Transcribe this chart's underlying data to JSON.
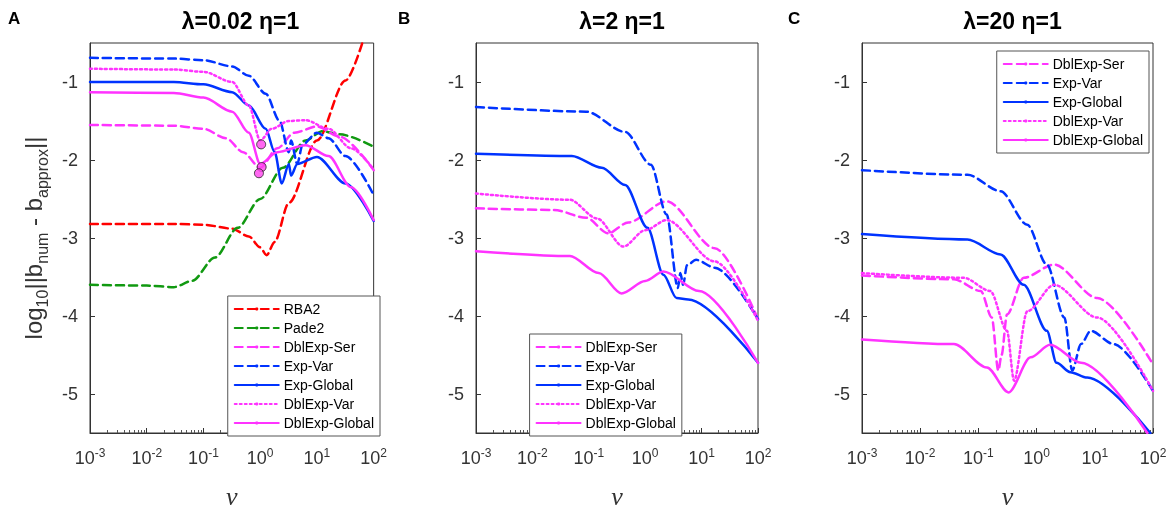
{
  "chart_data": [
    {
      "type": "line",
      "title": "λ=0.02 η=1",
      "annotations": [
        "A"
      ],
      "xlabel": "ν",
      "ylabel": "log$_{10}$||b$_{num}$ - b$_{approx}$||",
      "log": "x",
      "xlim": [
        0.001,
        100
      ],
      "ylim": [
        -5.5,
        -0.5
      ],
      "xticks": [
        {
          "value": 0.001,
          "label": "10$^{-3}$"
        },
        {
          "value": 0.01,
          "label": "10$^{-2}$"
        },
        {
          "value": 0.1,
          "label": "10$^{-1}$"
        },
        {
          "value": 1,
          "label": "10$^{0}$"
        },
        {
          "value": 10,
          "label": "10$^{1}$"
        },
        {
          "value": 100,
          "label": "10$^{2}$"
        }
      ],
      "yticks": [
        -5,
        -4,
        -3,
        -2,
        -1
      ],
      "grid": false,
      "legend": "bottom right",
      "marker": "none",
      "series": [
        {
          "name": "RBA2",
          "color": "#ff0000",
          "line_style": "dashed",
          "x": [
            0.001,
            0.03,
            0.1,
            0.32,
            0.63,
            1,
            1.3,
            1.8,
            3.2,
            10,
            32,
            63
          ],
          "values": [
            -2.82,
            -2.82,
            -2.83,
            -2.88,
            -2.98,
            -3.12,
            -3.22,
            -3.05,
            -2.55,
            -1.75,
            -0.98,
            -0.5
          ]
        },
        {
          "name": "Pade2",
          "color": "#119911",
          "line_style": "dashed",
          "x": [
            0.001,
            0.01,
            0.03,
            0.063,
            0.16,
            0.4,
            1,
            2.5,
            6.3,
            12.5,
            25,
            100
          ],
          "values": [
            -3.6,
            -3.61,
            -3.63,
            -3.55,
            -3.25,
            -2.87,
            -2.5,
            -2.1,
            -1.75,
            -1.63,
            -1.67,
            -1.83
          ]
        },
        {
          "name": "DblExp-Ser",
          "color": "#ff33ff",
          "line_style": "dashed",
          "x": [
            0.001,
            0.03,
            0.1,
            0.25,
            0.5,
            1,
            2,
            4,
            10,
            25,
            100
          ],
          "values": [
            -1.55,
            -1.56,
            -1.6,
            -1.72,
            -1.9,
            -2.1,
            -1.85,
            -1.65,
            -1.57,
            -1.7,
            -2.13
          ]
        },
        {
          "name": "Exp-Var",
          "color": "#0033ff",
          "line_style": "dashed",
          "x": [
            0.001,
            0.03,
            0.1,
            0.32,
            0.63,
            1.25,
            2.2,
            3.2,
            3.5,
            4.5,
            5.6,
            10,
            16,
            32,
            100
          ],
          "values": [
            -0.69,
            -0.7,
            -0.72,
            -0.8,
            -0.92,
            -1.15,
            -1.5,
            -1.9,
            -1.75,
            -2.05,
            -1.8,
            -1.65,
            -1.72,
            -1.95,
            -2.45
          ]
        },
        {
          "name": "Exp-Global",
          "color": "#0033ff",
          "line_style": "solid",
          "x": [
            0.001,
            0.03,
            0.1,
            0.32,
            0.63,
            1.25,
            1.8,
            2.4,
            3.2,
            3.5,
            4.5,
            10,
            32,
            100
          ],
          "values": [
            -1.0,
            -1.0,
            -1.03,
            -1.13,
            -1.3,
            -1.6,
            -1.9,
            -2.3,
            -2.05,
            -2.2,
            -2.05,
            -1.96,
            -2.3,
            -2.78
          ]
        },
        {
          "name": "DblExp-Var",
          "color": "#ff33ff",
          "line_style": "dotted",
          "x": [
            0.001,
            0.03,
            0.1,
            0.32,
            0.63,
            1,
            1.6,
            3.2,
            6.3,
            16,
            40,
            100
          ],
          "values": [
            -0.83,
            -0.84,
            -0.87,
            -1.0,
            -1.3,
            -1.75,
            -1.6,
            -1.5,
            -1.49,
            -1.6,
            -1.85,
            -2.12
          ]
        },
        {
          "name": "DblExp-Global",
          "color": "#ff33ff",
          "line_style": "solid",
          "x": [
            0.001,
            0.03,
            0.1,
            0.32,
            0.63,
            1,
            2,
            6.3,
            16,
            40,
            100
          ],
          "values": [
            -1.13,
            -1.14,
            -1.2,
            -1.38,
            -1.65,
            -2.05,
            -1.9,
            -1.81,
            -1.95,
            -2.35,
            -2.77
          ]
        },
        {
          "type": "scatter",
          "marker": "circle",
          "color": "#ff44ee",
          "x": [
            1.04,
            1.06,
            0.95
          ],
          "values": [
            -1.8,
            -2.09,
            -2.17
          ]
        }
      ]
    },
    {
      "type": "line",
      "title": "λ=2 η=1",
      "annotations": [
        "B"
      ],
      "xlabel": "ν",
      "log": "x",
      "xlim": [
        0.001,
        100
      ],
      "ylim": [
        -5.5,
        -0.5
      ],
      "xticks": [
        {
          "value": 0.001,
          "label": "10$^{-3}$"
        },
        {
          "value": 0.01,
          "label": "10$^{-2}$"
        },
        {
          "value": 0.1,
          "label": "10$^{-1}$"
        },
        {
          "value": 1,
          "label": "10$^{0}$"
        },
        {
          "value": 10,
          "label": "10$^{1}$"
        },
        {
          "value": 100,
          "label": "10$^{2}$"
        }
      ],
      "yticks": [
        -5,
        -4,
        -3,
        -2,
        -1
      ],
      "grid": false,
      "legend": "bottom",
      "marker": "none",
      "series": [
        {
          "name": "DblExp-Ser",
          "color": "#ff33ff",
          "line_style": "dashed",
          "x": [
            0.001,
            0.024,
            0.09,
            0.22,
            0.5,
            2.4,
            17,
            100
          ],
          "values": [
            -2.62,
            -2.64,
            -2.74,
            -2.94,
            -2.8,
            -2.53,
            -3.13,
            -4.04
          ]
        },
        {
          "name": "Exp-Var",
          "color": "#0033ff",
          "line_style": "dashed",
          "x": [
            0.001,
            0.09,
            0.44,
            1.26,
            2.4,
            3.8,
            4.2,
            4.7,
            5.5,
            8,
            17,
            100
          ],
          "values": [
            -1.32,
            -1.38,
            -1.64,
            -2.06,
            -2.7,
            -3.64,
            -3.45,
            -3.6,
            -3.35,
            -3.28,
            -3.38,
            -4.04
          ]
        },
        {
          "name": "Exp-Global",
          "color": "#0033ff",
          "line_style": "solid",
          "x": [
            0.001,
            0.05,
            0.17,
            0.44,
            1.1,
            2.1,
            3.6,
            5.8,
            100
          ],
          "values": [
            -1.92,
            -1.95,
            -2.1,
            -2.32,
            -2.87,
            -3.47,
            -3.77,
            -3.79,
            -4.6
          ]
        },
        {
          "name": "DblExp-Var",
          "color": "#ff33ff",
          "line_style": "dotted",
          "x": [
            0.001,
            0.046,
            0.14,
            0.41,
            1,
            2.4,
            17,
            100
          ],
          "values": [
            -2.43,
            -2.51,
            -2.75,
            -3.11,
            -2.9,
            -2.77,
            -3.3,
            -4.06
          ]
        },
        {
          "name": "DblExp-Global",
          "color": "#ff33ff",
          "line_style": "solid",
          "x": [
            0.001,
            0.046,
            0.15,
            0.38,
            1,
            2.1,
            9,
            100
          ],
          "values": [
            -3.17,
            -3.23,
            -3.45,
            -3.71,
            -3.55,
            -3.43,
            -3.68,
            -4.6
          ]
        }
      ]
    },
    {
      "type": "line",
      "title": "λ=20 η=1",
      "annotations": [
        "C"
      ],
      "xlabel": "ν",
      "log": "x",
      "xlim": [
        0.001,
        100
      ],
      "ylim": [
        -5.5,
        -0.5
      ],
      "xticks": [
        {
          "value": 0.001,
          "label": "10$^{-3}$"
        },
        {
          "value": 0.01,
          "label": "10$^{-2}$"
        },
        {
          "value": 0.1,
          "label": "10$^{-1}$"
        },
        {
          "value": 1,
          "label": "10$^{0}$"
        },
        {
          "value": 10,
          "label": "10$^{1}$"
        },
        {
          "value": 100,
          "label": "10$^{2}$"
        }
      ],
      "yticks": [
        -5,
        -4,
        -3,
        -2,
        -1
      ],
      "grid": false,
      "legend": "top right",
      "marker": "none",
      "series": [
        {
          "name": "DblExp-Ser",
          "color": "#ff33ff",
          "line_style": "dashed",
          "x": [
            0.001,
            0.038,
            0.11,
            0.17,
            0.22,
            0.25,
            0.31,
            0.6,
            2,
            11,
            100
          ],
          "values": [
            -3.48,
            -3.53,
            -3.68,
            -4.02,
            -4.7,
            -4.5,
            -3.98,
            -3.51,
            -3.34,
            -3.77,
            -4.62
          ]
        },
        {
          "name": "Exp-Var",
          "color": "#0033ff",
          "line_style": "dashed",
          "x": [
            0.001,
            0.065,
            0.24,
            0.69,
            1.5,
            3,
            4.1,
            5.8,
            8.5,
            21,
            100
          ],
          "values": [
            -2.13,
            -2.19,
            -2.4,
            -2.83,
            -3.34,
            -4.02,
            -4.7,
            -4.36,
            -4.19,
            -4.36,
            -4.96
          ]
        },
        {
          "name": "Exp-Global",
          "color": "#0033ff",
          "line_style": "solid",
          "x": [
            0.001,
            0.065,
            0.24,
            0.6,
            1.5,
            2.2,
            3.8,
            7.4,
            90
          ],
          "values": [
            -2.95,
            -3.02,
            -3.21,
            -3.6,
            -4.19,
            -4.6,
            -4.72,
            -4.79,
            -5.5
          ]
        },
        {
          "name": "DblExp-Var",
          "color": "#ff33ff",
          "line_style": "dotted",
          "x": [
            0.001,
            0.056,
            0.16,
            0.31,
            0.41,
            0.69,
            2,
            11,
            100
          ],
          "values": [
            -3.45,
            -3.51,
            -3.68,
            -4.19,
            -4.83,
            -3.94,
            -3.6,
            -4.02,
            -4.96
          ]
        },
        {
          "name": "DblExp-Global",
          "color": "#ff33ff",
          "line_style": "solid",
          "x": [
            0.001,
            0.038,
            0.14,
            0.33,
            0.79,
            1.7,
            5.8,
            80
          ],
          "values": [
            -4.3,
            -4.36,
            -4.66,
            -4.98,
            -4.53,
            -4.37,
            -4.6,
            -5.5
          ]
        }
      ]
    }
  ]
}
